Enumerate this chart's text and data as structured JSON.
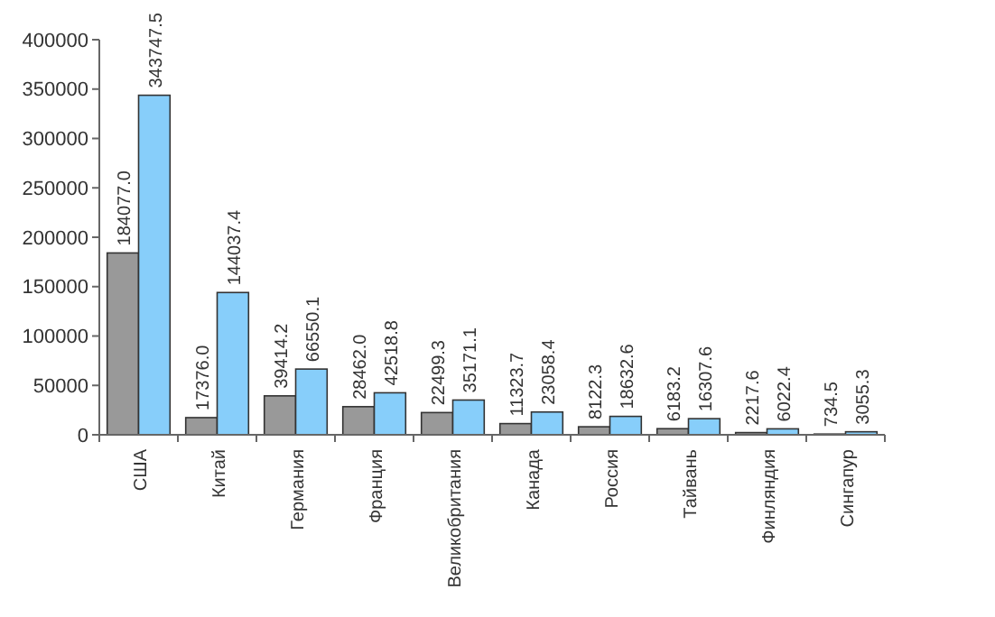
{
  "chart_data": {
    "type": "bar",
    "categories": [
      "США",
      "Китай",
      "Германия",
      "Франция",
      "Великобритания",
      "Канада",
      "Россия",
      "Тайвань",
      "Финляндия",
      "Сингапур"
    ],
    "series": [
      {
        "color": "#999999",
        "values": [
          184077,
          17376,
          39414.2,
          28462,
          22499.3,
          11323.7,
          8122.3,
          6183.2,
          2217.6,
          734.5
        ],
        "value_labels": [
          "184077.0",
          "17376.0",
          "39414.2",
          "28462.0",
          "22499.3",
          "11323.7",
          "8122.3",
          "6183.2",
          "2217.6",
          "734.5"
        ]
      },
      {
        "color": "#87cefa",
        "values": [
          343747.5,
          144037.4,
          66550.1,
          42518.8,
          35171.1,
          23058.4,
          18632.6,
          16307.6,
          6022.4,
          3055.3
        ],
        "value_labels": [
          "343747.5",
          "144037.4",
          "66550.1",
          "42518.8",
          "35171.1",
          "23058.4",
          "18632.6",
          "16307.6",
          "6022.4",
          "3055.3"
        ]
      }
    ],
    "ylim": [
      0,
      400000
    ],
    "yticks": [
      0,
      50000,
      100000,
      150000,
      200000,
      250000,
      300000,
      350000,
      400000
    ],
    "grid": false
  }
}
